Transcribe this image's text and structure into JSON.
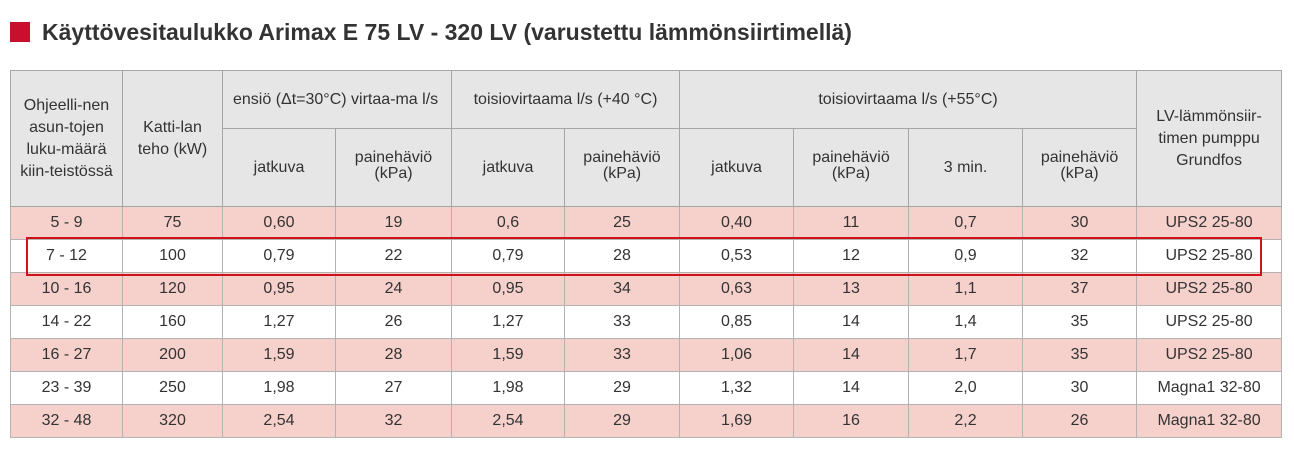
{
  "title": "Käyttövesitaulukko Arimax E 75 LV - 320 LV (varustettu lämmönsiirtimellä)",
  "colors": {
    "accent": "#c8102e",
    "header_bg": "#e6e6e6",
    "row_pink": "#f6d0cb",
    "highlight_border": "#d0121b"
  },
  "header": {
    "col1": "Ohjeelli-nen asun-tojen luku-määrä kiin-teistössä",
    "col2": "Katti-lan teho (kW)",
    "group1": "ensiö (Δt=30°C) virtaa-ma l/s",
    "group2": "toisiovirtaama l/s (+40 °C)",
    "group3": "toisiovirtaama l/s (+55°C)",
    "col_last": "LV-lämmönsiir-timen pumppu Grundfos",
    "sub": {
      "jatkuva": "jatkuva",
      "painehavio_a": "painehäviö",
      "painehavio_b": "(kPa)",
      "three_min": "3 min."
    }
  },
  "rows": [
    [
      "5 - 9",
      "75",
      "0,60",
      "19",
      "0,6",
      "25",
      "0,40",
      "11",
      "0,7",
      "30",
      "UPS2 25-80"
    ],
    [
      "7 - 12",
      "100",
      "0,79",
      "22",
      "0,79",
      "28",
      "0,53",
      "12",
      "0,9",
      "32",
      "UPS2 25-80"
    ],
    [
      "10 - 16",
      "120",
      "0,95",
      "24",
      "0,95",
      "34",
      "0,63",
      "13",
      "1,1",
      "37",
      "UPS2 25-80"
    ],
    [
      "14 - 22",
      "160",
      "1,27",
      "26",
      "1,27",
      "33",
      "0,85",
      "14",
      "1,4",
      "35",
      "UPS2 25-80"
    ],
    [
      "16 - 27",
      "200",
      "1,59",
      "28",
      "1,59",
      "33",
      "1,06",
      "14",
      "1,7",
      "35",
      "UPS2 25-80"
    ],
    [
      "23 - 39",
      "250",
      "1,98",
      "27",
      "1,98",
      "29",
      "1,32",
      "14",
      "2,0",
      "30",
      "Magna1 32-80"
    ],
    [
      "32 - 48",
      "320",
      "2,54",
      "32",
      "2,54",
      "29",
      "1,69",
      "16",
      "2,2",
      "26",
      "Magna1 32-80"
    ]
  ]
}
